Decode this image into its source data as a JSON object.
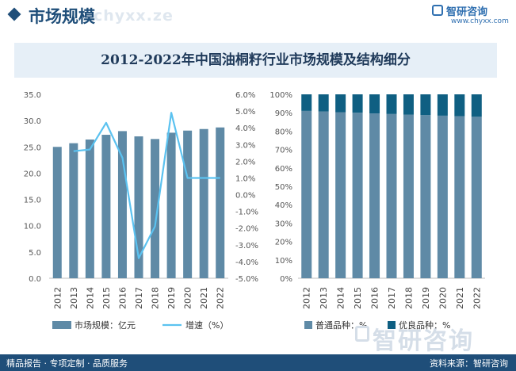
{
  "header": {
    "page_title": "市场规模",
    "title_watermark": "chyxx.ze",
    "logo_name": "智研咨询",
    "logo_url": "www.chyxx.com"
  },
  "colors": {
    "bar": "#5f8aa6",
    "line": "#5bc2f0",
    "stack_top": "#0f5f82",
    "title_panel": "#e6eff7",
    "footer": "#1f4e79"
  },
  "chart_data": [
    {
      "type": "bar+line",
      "title": "2012-2022年中国油桐籽行业市场规模及结构细分",
      "categories": [
        "2012",
        "2013",
        "2014",
        "2015",
        "2016",
        "2017",
        "2018",
        "2019",
        "2020",
        "2021",
        "2022"
      ],
      "series": [
        {
          "name": "市场规模：亿元",
          "type": "bar",
          "axis": "left",
          "values": [
            25.0,
            25.7,
            26.4,
            27.3,
            28.0,
            27.0,
            26.5,
            27.7,
            28.1,
            28.4,
            28.7
          ]
        },
        {
          "name": "增速（%）",
          "type": "line",
          "axis": "right",
          "values": [
            null,
            2.6,
            2.7,
            4.3,
            2.2,
            -3.8,
            -1.9,
            4.9,
            1.0,
            1.0,
            1.0
          ]
        }
      ],
      "left_axis": {
        "ylim": [
          0,
          35
        ],
        "ticks": [
          "0.0",
          "5.0",
          "10.0",
          "15.0",
          "20.0",
          "25.0",
          "30.0",
          "35.0"
        ]
      },
      "right_axis": {
        "ylim": [
          -5,
          6
        ],
        "ticks": [
          "-5.0%",
          "-4.0%",
          "-3.0%",
          "-2.0%",
          "-1.0%",
          "0.0%",
          "1.0%",
          "2.0%",
          "3.0%",
          "4.0%",
          "5.0%",
          "6.0%"
        ]
      },
      "legend": [
        {
          "label": "市场规模：亿元",
          "kind": "bar"
        },
        {
          "label": "增速（%）",
          "kind": "line"
        }
      ]
    },
    {
      "type": "stacked-bar-100",
      "categories": [
        "2012",
        "2013",
        "2014",
        "2015",
        "2016",
        "2017",
        "2018",
        "2019",
        "2020",
        "2021",
        "2022"
      ],
      "series": [
        {
          "name": "普通品种：%",
          "values": [
            91.0,
            90.7,
            90.3,
            90.0,
            89.6,
            89.3,
            89.0,
            88.7,
            88.4,
            88.1,
            87.8
          ]
        },
        {
          "name": "优良品种：%",
          "values": [
            9.0,
            9.3,
            9.7,
            10.0,
            10.4,
            10.7,
            11.0,
            11.3,
            11.6,
            11.9,
            12.2
          ]
        }
      ],
      "ylim": [
        0,
        100
      ],
      "ticks": [
        "0%",
        "10%",
        "20%",
        "30%",
        "40%",
        "50%",
        "60%",
        "70%",
        "80%",
        "90%",
        "100%"
      ],
      "legend": [
        {
          "label": "普通品种：%"
        },
        {
          "label": "优良品种：%"
        }
      ]
    }
  ],
  "footer": {
    "left_text": "精品报告 · 专项定制 · 品质服务",
    "right_text": "资料来源：智研咨询"
  },
  "watermark": {
    "text": "智研咨询"
  }
}
